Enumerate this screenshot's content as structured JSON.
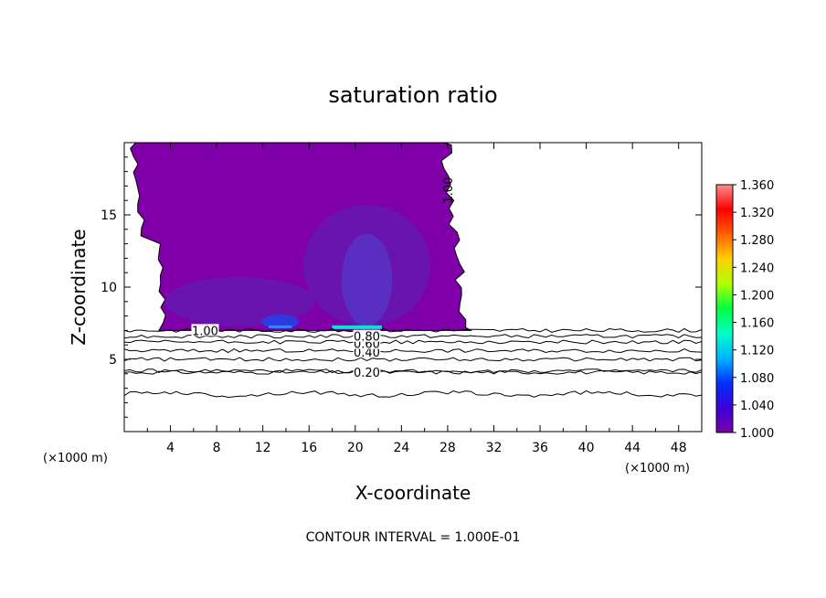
{
  "chart_data": {
    "type": "heatmap",
    "title": "saturation ratio",
    "xlabel": "X-coordinate",
    "ylabel": "Z-coordinate",
    "x_unit_left": "(×1000 m)",
    "x_unit_right": "(×1000 m)",
    "xlim": [
      0,
      50
    ],
    "ylim": [
      0,
      20
    ],
    "x_ticks": [
      4,
      8,
      12,
      16,
      20,
      24,
      28,
      32,
      36,
      40,
      44,
      48
    ],
    "y_ticks": [
      5,
      10,
      15
    ],
    "colorbar": {
      "min": 1.0,
      "max": 1.36,
      "ticks": [
        "1.000",
        "1.040",
        "1.080",
        "1.120",
        "1.160",
        "1.200",
        "1.240",
        "1.280",
        "1.320",
        "1.360"
      ],
      "colors": [
        "#7a00a8",
        "#3d00d6",
        "#0030ff",
        "#00b4ff",
        "#00ffc8",
        "#00ff40",
        "#b0ff00",
        "#ffd000",
        "#ff6000",
        "#ff0000",
        "#ff8c8c"
      ]
    },
    "contours": [
      {
        "level": 0.2,
        "label": "0.20",
        "z": 4.1
      },
      {
        "level": 0.4,
        "label": "0.40",
        "z": 5.6
      },
      {
        "level": 0.6,
        "label": "0.60",
        "z": 6.2
      },
      {
        "level": 0.8,
        "label": "0.80",
        "z": 6.6
      },
      {
        "level": 1.0,
        "label": "1.00",
        "z": 7.0
      }
    ],
    "supersaturated_region": {
      "x_range": [
        3,
        30
      ],
      "z_range": [
        7,
        20
      ],
      "fill_color": "#7f00a8",
      "inner_color": "#6a14b0",
      "core_color": "#5a2ec0",
      "max_color": "#3a80ff"
    },
    "lower_lines_extra_z": [
      2.6,
      4.2,
      5.0
    ],
    "footer": "CONTOUR INTERVAL = 1.000E-01"
  }
}
